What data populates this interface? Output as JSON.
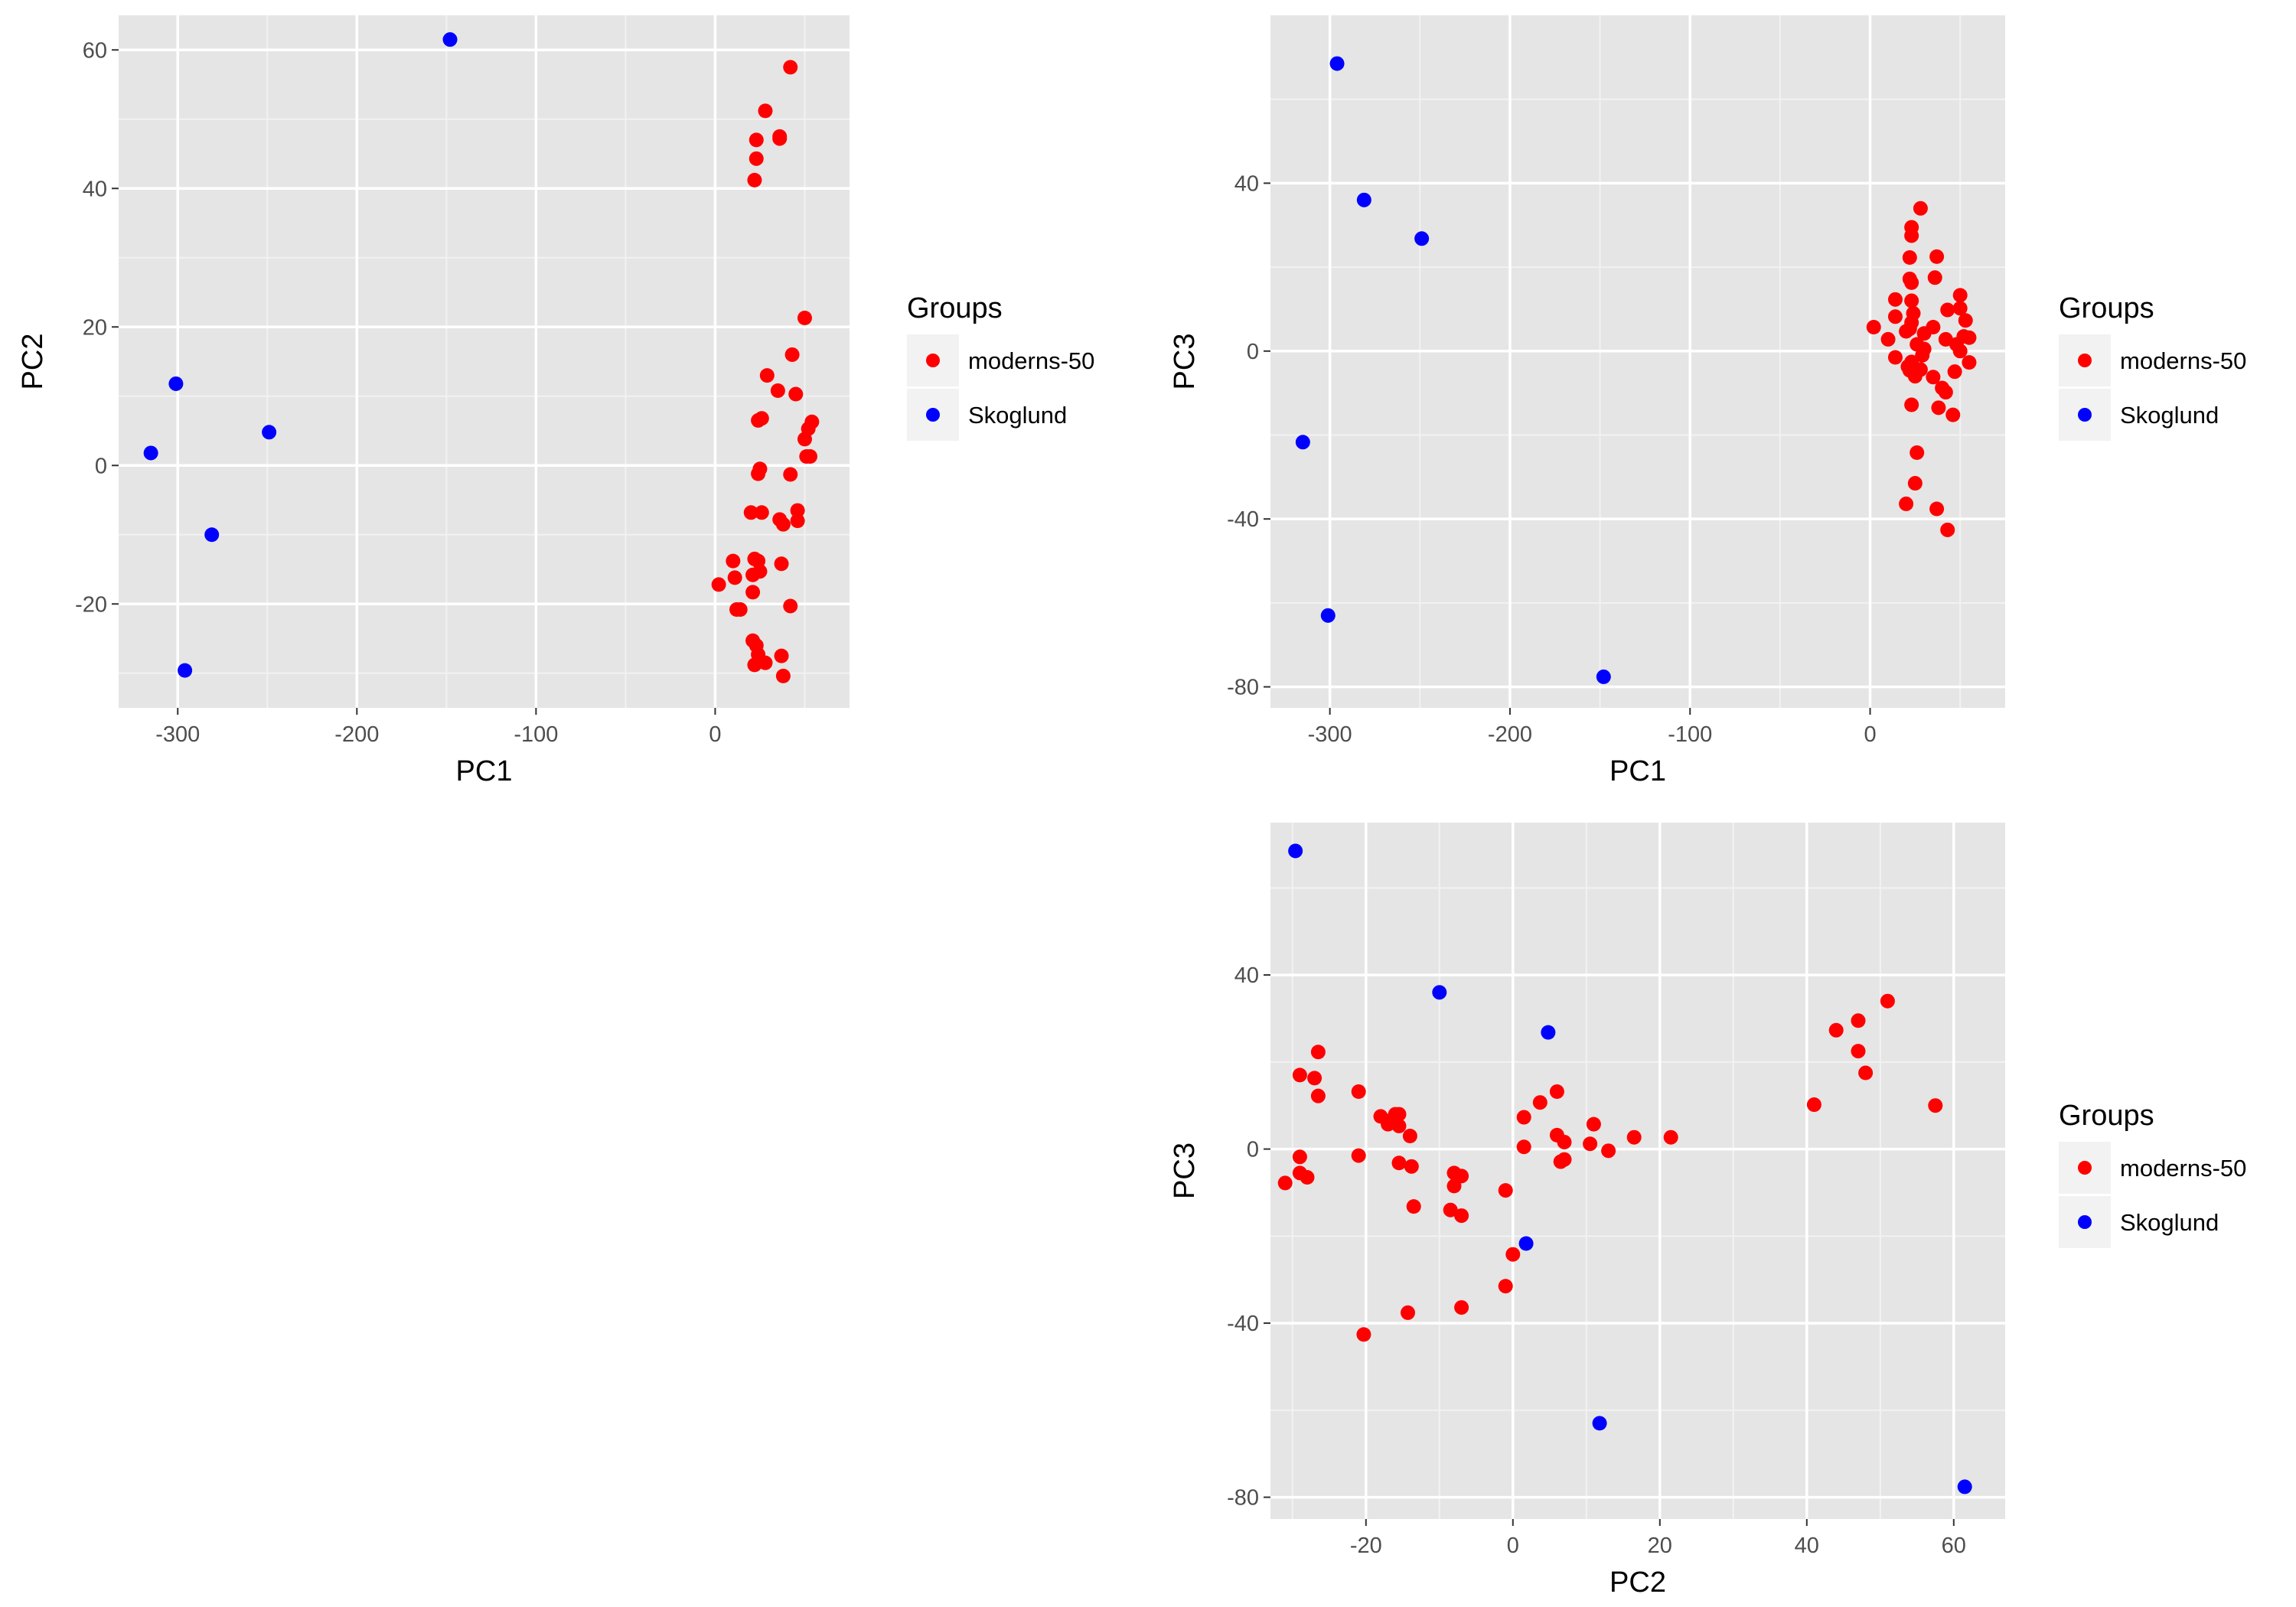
{
  "legend": {
    "title": "Groups",
    "entries": [
      {
        "name": "moderns-50",
        "color": "#ff0000"
      },
      {
        "name": "Skoglund",
        "color": "#0000ff"
      }
    ]
  },
  "theme": {
    "panel_background": "#e5e5e5",
    "grid_major": "#ffffff",
    "grid_minor": "#f2f2f2",
    "tick_text": "#4d4d4d"
  },
  "chart_data": [
    {
      "type": "scatter",
      "xlabel": "PC1",
      "ylabel": "PC2",
      "xlim": [
        -333,
        75
      ],
      "ylim": [
        -35,
        65
      ],
      "xticks": [
        -300,
        -200,
        -100,
        0
      ],
      "yticks": [
        -20,
        0,
        20,
        40,
        60
      ],
      "grid": true,
      "legend_position": "right",
      "series": [
        {
          "name": "moderns-50",
          "color": "#ff0000",
          "points": [
            [
              42,
              57.5
            ],
            [
              28,
              51.2
            ],
            [
              36,
              47.5
            ],
            [
              36,
              47.2
            ],
            [
              23,
              47
            ],
            [
              23,
              44.3
            ],
            [
              22,
              41.2
            ],
            [
              50,
              21.3
            ],
            [
              43,
              16
            ],
            [
              29,
              13
            ],
            [
              45,
              10.3
            ],
            [
              35,
              10.8
            ],
            [
              54,
              6.3
            ],
            [
              26,
              6.8
            ],
            [
              24,
              6.5
            ],
            [
              52,
              5.3
            ],
            [
              50,
              3.8
            ],
            [
              51,
              1.3
            ],
            [
              53,
              1.3
            ],
            [
              25,
              -0.5
            ],
            [
              24,
              -1.2
            ],
            [
              42,
              -1.3
            ],
            [
              20,
              -6.8
            ],
            [
              26,
              -6.8
            ],
            [
              46,
              -6.5
            ],
            [
              36,
              -7.8
            ],
            [
              46,
              -8
            ],
            [
              38,
              -8.5
            ],
            [
              10,
              -13.8
            ],
            [
              22,
              -13.5
            ],
            [
              24,
              -13.8
            ],
            [
              37,
              -14.2
            ],
            [
              21,
              -15.8
            ],
            [
              25,
              -15.3
            ],
            [
              11,
              -16.2
            ],
            [
              2,
              -17.2
            ],
            [
              21,
              -18.3
            ],
            [
              42,
              -20.3
            ],
            [
              12,
              -20.8
            ],
            [
              14,
              -20.8
            ],
            [
              21,
              -25.3
            ],
            [
              23,
              -26
            ],
            [
              24,
              -27.3
            ],
            [
              37,
              -27.5
            ],
            [
              22,
              -28.8
            ],
            [
              28,
              -28.5
            ],
            [
              38,
              -30.4
            ]
          ]
        },
        {
          "name": "Skoglund",
          "color": "#0000ff",
          "points": [
            [
              -148,
              61.5
            ],
            [
              -301,
              11.8
            ],
            [
              -315,
              1.8
            ],
            [
              -249,
              4.8
            ],
            [
              -281,
              -10
            ],
            [
              -296,
              -29.6
            ]
          ]
        }
      ]
    },
    {
      "type": "scatter",
      "xlabel": "PC1",
      "ylabel": "PC3",
      "xlim": [
        -333,
        75
      ],
      "ylim": [
        -85,
        80
      ],
      "xticks": [
        -300,
        -200,
        -100,
        0
      ],
      "yticks": [
        -80,
        -40,
        0,
        40
      ],
      "grid": true,
      "legend_position": "right",
      "series": [
        {
          "name": "moderns-50",
          "color": "#ff0000",
          "points": [
            [
              28,
              34
            ],
            [
              23,
              29.5
            ],
            [
              23,
              27.5
            ],
            [
              22,
              22.3
            ],
            [
              37,
              22.5
            ],
            [
              22,
              17.2
            ],
            [
              23,
              16.3
            ],
            [
              36,
              17.5
            ],
            [
              50,
              13.3
            ],
            [
              14,
              12.3
            ],
            [
              23,
              12
            ],
            [
              50,
              10.2
            ],
            [
              43,
              9.8
            ],
            [
              24,
              9
            ],
            [
              14,
              8.2
            ],
            [
              53,
              7.3
            ],
            [
              23,
              6.8
            ],
            [
              35,
              5.7
            ],
            [
              2,
              5.7
            ],
            [
              20,
              4.7
            ],
            [
              22,
              5.3
            ],
            [
              30,
              4.2
            ],
            [
              10,
              2.8
            ],
            [
              42,
              2.8
            ],
            [
              52,
              3.5
            ],
            [
              55,
              3.2
            ],
            [
              26,
              1.6
            ],
            [
              48,
              1.6
            ],
            [
              30,
              0.5
            ],
            [
              50,
              0
            ],
            [
              29,
              -1
            ],
            [
              14,
              -1.5
            ],
            [
              55,
              -2.7
            ],
            [
              23,
              -2.6
            ],
            [
              21,
              -3.7
            ],
            [
              26,
              -4.4
            ],
            [
              28,
              -4.4
            ],
            [
              47,
              -4.9
            ],
            [
              22,
              -4.6
            ],
            [
              25,
              -6
            ],
            [
              35,
              -6.2
            ],
            [
              40,
              -8.8
            ],
            [
              42,
              -9.8
            ],
            [
              23,
              -12.8
            ],
            [
              38,
              -13.5
            ],
            [
              46,
              -15.2
            ],
            [
              26,
              -24.2
            ],
            [
              25,
              -31.5
            ],
            [
              20,
              -36.4
            ],
            [
              37,
              -37.6
            ],
            [
              43,
              -42.6
            ]
          ]
        },
        {
          "name": "Skoglund",
          "color": "#0000ff",
          "points": [
            [
              -296,
              68.5
            ],
            [
              -281,
              36
            ],
            [
              -249,
              26.8
            ],
            [
              -315,
              -21.7
            ],
            [
              -301,
              -63
            ],
            [
              -148,
              -77.6
            ]
          ]
        }
      ]
    },
    {
      "type": "scatter",
      "xlabel": "PC2",
      "ylabel": "PC3",
      "xlim": [
        -33,
        67
      ],
      "ylim": [
        -85,
        75
      ],
      "xticks": [
        -20,
        0,
        20,
        40,
        60
      ],
      "yticks": [
        -80,
        -40,
        0,
        40
      ],
      "grid": true,
      "legend_position": "right",
      "series": [
        {
          "name": "moderns-50",
          "color": "#ff0000",
          "points": [
            [
              51,
              34
            ],
            [
              47,
              29.5
            ],
            [
              44,
              27.3
            ],
            [
              47,
              22.5
            ],
            [
              48,
              17.5
            ],
            [
              41,
              10.2
            ],
            [
              57.5,
              10
            ],
            [
              -26.5,
              22.3
            ],
            [
              -29,
              17
            ],
            [
              -27,
              16.3
            ],
            [
              -26.5,
              12.2
            ],
            [
              -21,
              13.2
            ],
            [
              -15.5,
              8
            ],
            [
              -16,
              8
            ],
            [
              -18,
              7.5
            ],
            [
              -16.5,
              6.7
            ],
            [
              -17,
              5.7
            ],
            [
              -15.5,
              5.3
            ],
            [
              -14,
              3
            ],
            [
              -29,
              -1.8
            ],
            [
              -21,
              -1.5
            ],
            [
              -15.5,
              -3.2
            ],
            [
              -13.8,
              -4
            ],
            [
              -8,
              -5.5
            ],
            [
              -7,
              -6.2
            ],
            [
              -29,
              -5.5
            ],
            [
              -28,
              -6.5
            ],
            [
              -31,
              -7.8
            ],
            [
              -8,
              -8.5
            ],
            [
              -1,
              -9.5
            ],
            [
              -8.5,
              -14
            ],
            [
              -7,
              -15.3
            ],
            [
              -13.5,
              -13.2
            ],
            [
              1.5,
              7.3
            ],
            [
              3.7,
              10.7
            ],
            [
              6,
              13.2
            ],
            [
              6,
              3.2
            ],
            [
              7,
              1.6
            ],
            [
              10.5,
              1.2
            ],
            [
              1.5,
              0.5
            ],
            [
              7,
              -2.4
            ],
            [
              6.5,
              -2.9
            ],
            [
              13,
              -0.4
            ],
            [
              16.5,
              2.7
            ],
            [
              21.5,
              2.7
            ],
            [
              11,
              5.7
            ],
            [
              0,
              -24.2
            ],
            [
              -1,
              -31.5
            ],
            [
              -7,
              -36.4
            ],
            [
              -14.3,
              -37.6
            ],
            [
              -20.3,
              -42.6
            ]
          ]
        },
        {
          "name": "Skoglund",
          "color": "#0000ff",
          "points": [
            [
              -29.6,
              68.5
            ],
            [
              -10,
              36
            ],
            [
              4.8,
              26.8
            ],
            [
              1.8,
              -21.7
            ],
            [
              11.8,
              -63
            ],
            [
              61.5,
              -77.6
            ]
          ]
        }
      ]
    }
  ]
}
